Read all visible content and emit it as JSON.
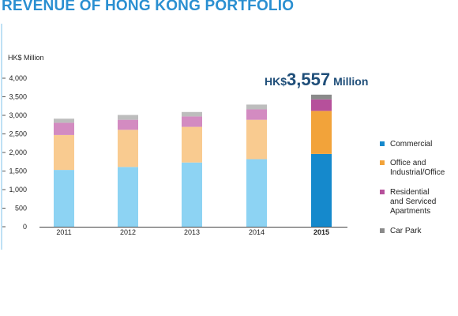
{
  "page_title": "REVENUE OF HONG KONG PORTFOLIO",
  "chart_data": {
    "type": "bar",
    "stacked": true,
    "title": "",
    "ylabel": "HK$ Million",
    "xlabel": "",
    "categories": [
      "2011",
      "2012",
      "2013",
      "2014",
      "2015"
    ],
    "highlight_category": "2015",
    "ylim": [
      0,
      4000
    ],
    "yticks": [
      0,
      500,
      1000,
      1500,
      2000,
      2500,
      3000,
      3500,
      4000
    ],
    "ytick_labels": [
      "0",
      "500",
      "1,000",
      "1,500",
      "2,000",
      "2,500",
      "3,000",
      "3,500",
      "4,000"
    ],
    "grid": false,
    "legend_position": "right",
    "series": [
      {
        "name": "Commercial",
        "values": [
          1530,
          1610,
          1730,
          1820,
          1960
        ],
        "color": "#8dd3f3",
        "highlight_color": "#1589cc"
      },
      {
        "name": "Office and Industrial/Office",
        "values": [
          940,
          1000,
          960,
          1060,
          1160
        ],
        "color": "#f9cb90",
        "highlight_color": "#f2a33a"
      },
      {
        "name": "Residential and Serviced Apartments",
        "values": [
          330,
          270,
          280,
          280,
          310
        ],
        "color": "#d38bc1",
        "highlight_color": "#b6509b"
      },
      {
        "name": "Car Park",
        "values": [
          110,
          130,
          120,
          130,
          127
        ],
        "color": "#bdbdbd",
        "highlight_color": "#8a8a8a"
      }
    ],
    "legend_labels": [
      [
        "Commercial"
      ],
      [
        "Office and",
        "Industrial/Office"
      ],
      [
        "Residential",
        "and Serviced",
        "Apartments"
      ],
      [
        "Car Park"
      ]
    ],
    "annotation": {
      "prefix": "HK$",
      "value": "3,557",
      "suffix": "Million",
      "category": "2015"
    }
  }
}
